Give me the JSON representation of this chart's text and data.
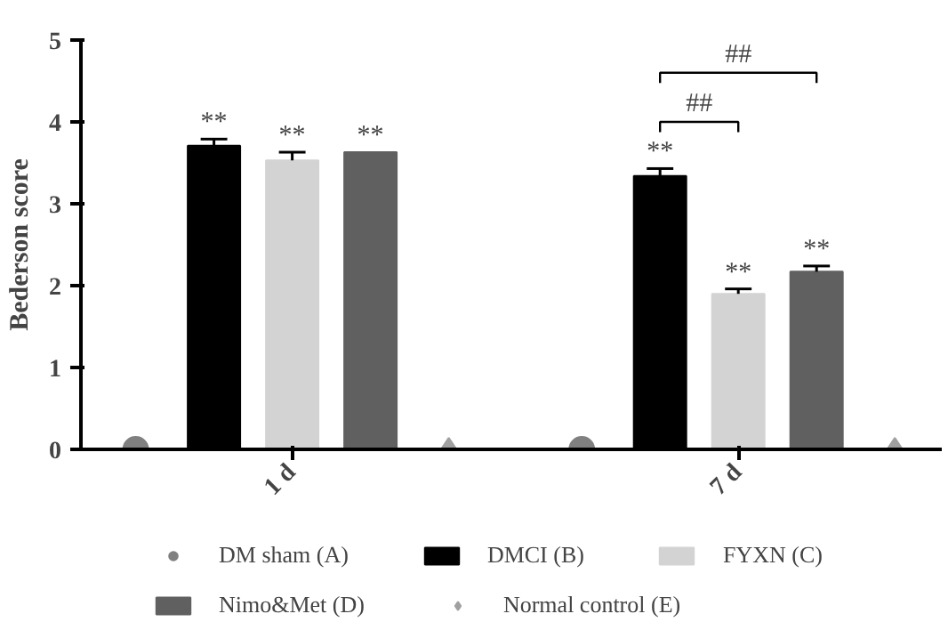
{
  "chart_data": {
    "type": "bar",
    "ylabel": "Bederson score",
    "categories": [
      "1 d",
      "7 d"
    ],
    "series": [
      {
        "name": "DM sham (A)",
        "type": "scatter",
        "marker": "circle",
        "color": "#808080",
        "values": [
          0,
          0
        ]
      },
      {
        "name": "DMCI (B)",
        "color": "#000000",
        "values": [
          3.71,
          3.34
        ],
        "errors": [
          0.08,
          0.09
        ]
      },
      {
        "name": "FYXN (C)",
        "color": "#d3d3d3",
        "values": [
          3.53,
          1.9
        ],
        "errors": [
          0.1,
          0.06
        ]
      },
      {
        "name": "Nimo&Met (D)",
        "color": "#606060",
        "values": [
          3.63,
          2.17
        ],
        "errors": [
          null,
          0.07
        ]
      },
      {
        "name": "Normal control (E)",
        "type": "scatter",
        "marker": "diamond",
        "color": "#a0a0a0",
        "values": [
          0,
          0
        ]
      }
    ],
    "ylim": [
      0,
      5
    ],
    "yticks": [
      0,
      1,
      2,
      3,
      4,
      5
    ],
    "grid": false,
    "legend": "bottom",
    "annotations": [
      "**",
      "**",
      "**",
      "**",
      "**",
      "**",
      "##",
      "##"
    ]
  }
}
